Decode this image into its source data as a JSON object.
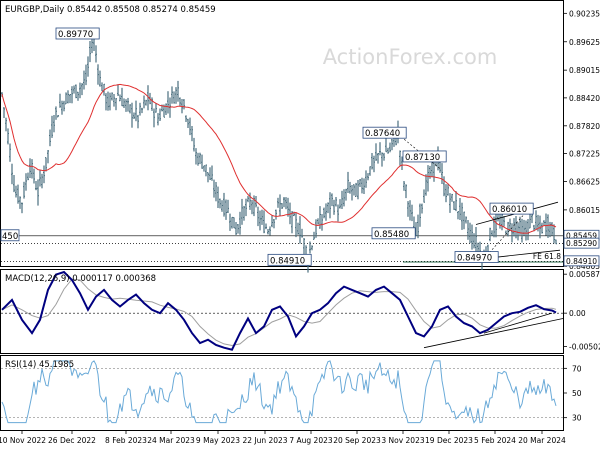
{
  "main": {
    "title": "EURGBP,Daily  0.85442 0.85508 0.85274 0.85459",
    "watermark": "ActionForex.com",
    "price_ticks": [
      "0.90235",
      "0.89625",
      "0.89015",
      "0.88420",
      "0.87820",
      "0.87225",
      "0.86625",
      "0.86015",
      "0.85415",
      "0.84805"
    ],
    "price_tick_values": [
      0.90235,
      0.89625,
      0.89015,
      0.8842,
      0.8782,
      0.87225,
      0.86625,
      0.86015,
      0.85415,
      0.84805
    ],
    "boxed_labels": [
      "0.85459",
      "0.85290",
      "0.84910"
    ],
    "left_edge_label": "450",
    "fe_label": "FE 61.8"
  },
  "macd": {
    "title": "MACD(12,26,9) 0.000117 0.000368",
    "ticks": [
      "0.00587",
      "0.00",
      "-0.005021"
    ]
  },
  "rsi": {
    "title": "RSI(14) 45.1985",
    "ticks": [
      "70",
      "50",
      "30"
    ]
  },
  "x_axis": {
    "labels": [
      "10 Nov 2022",
      "26 Dec 2022",
      "8 Feb 2023",
      "24 Mar 2023",
      "9 May 2023",
      "22 Jun 2023",
      "7 Aug 2023",
      "20 Sep 2023",
      "3 Nov 2023",
      "19 Dec 2023",
      "5 Feb 2024",
      "20 Mar 2024"
    ]
  },
  "colors": {
    "candle": "#4a6e7e",
    "ma": "#e03030",
    "macd_line": "#000080",
    "signal": "#a0a0a0",
    "rsi": "#6aaad8",
    "trend": "#000000",
    "fe_line": "#2e6b4e",
    "dotted": "#000000"
  },
  "chart_data": [
    {
      "type": "line",
      "title": "EURGBP,Daily  0.85442 0.85508 0.85274 0.85459",
      "x": [
        "10 Nov 2022",
        "26 Dec 2022",
        "8 Feb 2023",
        "24 Mar 2023",
        "9 May 2023",
        "22 Jun 2023",
        "7 Aug 2023",
        "20 Sep 2023",
        "3 Nov 2023",
        "19 Dec 2023",
        "5 Feb 2024",
        "20 Mar 2024"
      ],
      "series": [
        {
          "values": [
            0.868,
            0.86,
            0.888,
            0.882,
            0.87,
            0.858,
            0.859,
            0.862,
            0.872,
            0.86,
            0.854,
            0.857
          ]
        }
      ],
      "annotations": [
        {
          "label": "0.89770",
          "x": "8 Feb 2023",
          "y": 0.8977
        },
        {
          "label": "0.84910",
          "x": "7 Aug 2023",
          "y": 0.8491
        },
        {
          "label": "0.87640",
          "x": "3 Nov 2023",
          "y": 0.8764
        },
        {
          "label": "0.87130",
          "x": "19 Dec 2023",
          "y": 0.8713
        },
        {
          "label": "0.85480",
          "x": "19 Dec 2023",
          "y": 0.8548
        },
        {
          "label": "0.84970",
          "x": "5 Feb 2024",
          "y": 0.8497
        },
        {
          "label": "0.86010",
          "x": "20 Mar 2024",
          "y": 0.8601
        }
      ],
      "ylim": [
        0.8481,
        0.905
      ]
    },
    {
      "type": "line",
      "title": "MACD(12,26,9) 0.000117 0.000368",
      "ylim": [
        -0.006,
        0.0065
      ]
    },
    {
      "type": "line",
      "title": "RSI(14) 45.1985",
      "ylim": [
        20,
        80
      ]
    }
  ]
}
